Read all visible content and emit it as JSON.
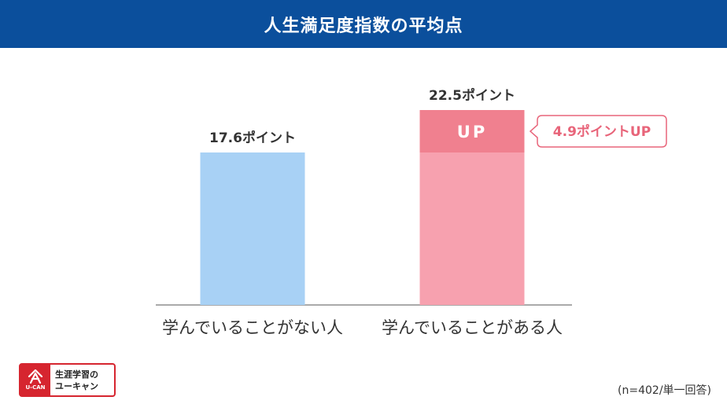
{
  "header": {
    "title": "人生満足度指数の平均点"
  },
  "chart_data": {
    "type": "bar",
    "categories": [
      "学んでいることがない人",
      "学んでいることがある人"
    ],
    "values": [
      17.6,
      22.5
    ],
    "value_labels": [
      "17.6ポイント",
      "22.5ポイント"
    ],
    "ylim": [
      0,
      22.5
    ],
    "colors": [
      "#a8d1f5",
      "#f7a1af"
    ],
    "highlight": {
      "label": "UP",
      "diff": 4.9,
      "color": "#f0808f",
      "callout": "4.9ポイントUP"
    }
  },
  "logo": {
    "mark": "U-CAN",
    "line1": "生涯学習の",
    "line2": "ユーキャン"
  },
  "footnote": "(n=402/単一回答)"
}
